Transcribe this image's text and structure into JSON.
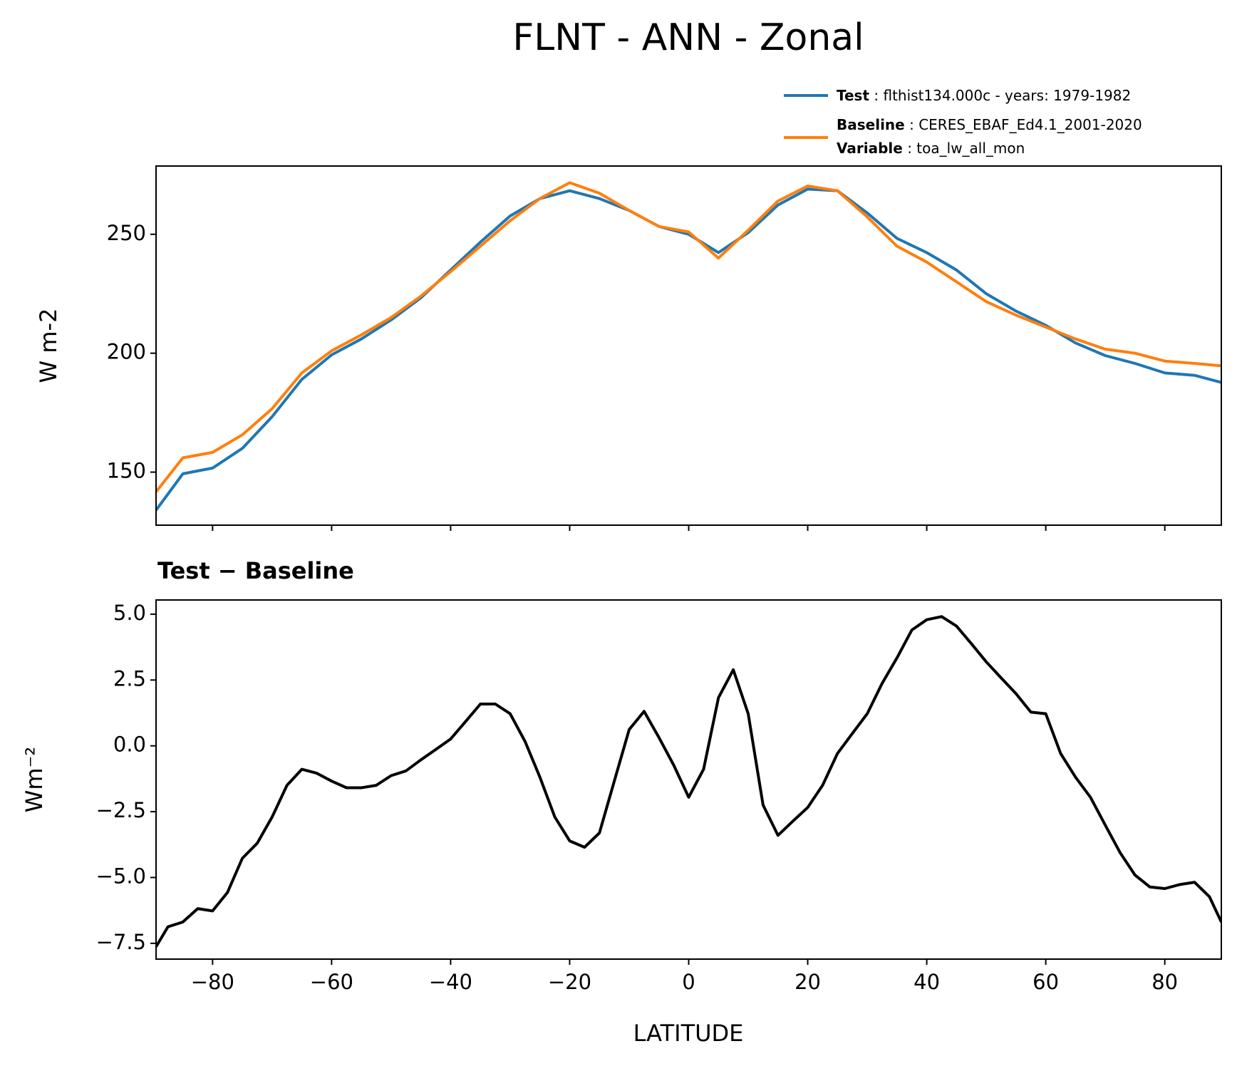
{
  "chart_data": [
    {
      "type": "line",
      "title": "FLNT - ANN - Zonal",
      "ylabel": "W m-2",
      "xlim": [
        -89.5,
        89.5
      ],
      "ylim": [
        127.7,
        278.7
      ],
      "xticks": [
        -80,
        -60,
        -40,
        -20,
        0,
        20,
        40,
        60,
        80
      ],
      "yticks": [
        150,
        200,
        250
      ],
      "x": [
        -89.5,
        -85,
        -80,
        -75,
        -70,
        -65,
        -60,
        -55,
        -50,
        -45,
        -40,
        -35,
        -30,
        -25,
        -20,
        -15,
        -10,
        -5,
        0,
        5,
        10,
        15,
        20,
        25,
        30,
        35,
        40,
        45,
        50,
        55,
        60,
        65,
        70,
        75,
        80,
        85,
        89.5
      ],
      "series": [
        {
          "name": "Test",
          "detail": ": flthist134.000c - years: 1979-1982",
          "color": "#1f77b4",
          "values": [
            134,
            149.3,
            151.7,
            160,
            173.3,
            189,
            199.3,
            206,
            214,
            223.3,
            235,
            246.7,
            257.7,
            265,
            268.3,
            265,
            260,
            253.3,
            250,
            242.3,
            250.7,
            262.3,
            269,
            268.3,
            259,
            248.3,
            242.3,
            235,
            225,
            217.7,
            211.7,
            204.3,
            199,
            195.7,
            191.7,
            190.7,
            187.7
          ]
        },
        {
          "name": "Baseline",
          "detail": ": CERES_EBAF_Ed4.1_2001-2020",
          "color": "#ff7f0e",
          "values": [
            141.7,
            156,
            158.3,
            165.7,
            176.7,
            191.7,
            201,
            207.7,
            215,
            224,
            234.3,
            245,
            255.7,
            265,
            271.7,
            267.3,
            260,
            253.3,
            251,
            240,
            251.7,
            264,
            270.3,
            268.3,
            257.3,
            245,
            238.3,
            230,
            221.7,
            216,
            211,
            206,
            201.7,
            200,
            196.7,
            195.7,
            194.7
          ]
        }
      ],
      "legend_note": {
        "label": "Variable",
        "detail": ": toa_lw_all_mon"
      },
      "legend": "upper right"
    },
    {
      "type": "line",
      "title": "Test − Baseline",
      "xlabel": "LATITUDE",
      "ylabel": "Wm⁻²",
      "xlim": [
        -89.5,
        89.5
      ],
      "ylim": [
        -8.1,
        5.54
      ],
      "xticks": [
        {
          "value": -80,
          "label": "−80"
        },
        {
          "value": -60,
          "label": "−60"
        },
        {
          "value": -40,
          "label": "−40"
        },
        {
          "value": -20,
          "label": "−20"
        },
        0,
        20,
        40,
        60,
        80
      ],
      "yticks": [
        {
          "value": 5,
          "label": "5.0"
        },
        {
          "value": 2.5,
          "label": "2.5"
        },
        {
          "value": 0,
          "label": "0.0"
        },
        {
          "value": -2.5,
          "label": "−2.5"
        },
        {
          "value": -5,
          "label": "−5.0"
        },
        {
          "value": -7.5,
          "label": "−7.5"
        }
      ],
      "x": [
        -89.5,
        -87.5,
        -85,
        -82.5,
        -80,
        -77.5,
        -75,
        -72.5,
        -70,
        -67.5,
        -65,
        -62.5,
        -60,
        -57.5,
        -55,
        -52.5,
        -50,
        -47.5,
        -45,
        -42.5,
        -40,
        -37.5,
        -35,
        -32.5,
        -30,
        -27.5,
        -25,
        -22.5,
        -20,
        -17.5,
        -15,
        -12.5,
        -10,
        -7.5,
        -5,
        -2.5,
        0,
        2.5,
        5,
        7.5,
        10,
        12.5,
        15,
        17.5,
        20,
        22.5,
        25,
        27.5,
        30,
        32.5,
        35,
        37.5,
        40,
        42.5,
        45,
        47.5,
        50,
        52.5,
        55,
        57.5,
        60,
        62.5,
        65,
        67.5,
        70,
        72.5,
        75,
        77.5,
        80,
        82.5,
        85,
        87.5,
        89.5
      ],
      "series": [
        {
          "color": "#000000",
          "values": [
            -7.63,
            -6.87,
            -6.69,
            -6.18,
            -6.27,
            -5.57,
            -4.27,
            -3.7,
            -2.7,
            -1.5,
            -0.89,
            -1.04,
            -1.34,
            -1.59,
            -1.59,
            -1.5,
            -1.13,
            -0.95,
            -0.53,
            -0.14,
            0.26,
            0.92,
            1.59,
            1.59,
            1.22,
            0.17,
            -1.19,
            -2.7,
            -3.61,
            -3.85,
            -3.31,
            -1.34,
            0.62,
            1.31,
            0.32,
            -0.74,
            -1.95,
            -0.89,
            1.83,
            2.89,
            1.22,
            -2.25,
            -3.4,
            -2.86,
            -2.34,
            -1.5,
            -0.29,
            0.47,
            1.22,
            2.37,
            3.34,
            4.4,
            4.79,
            4.91,
            4.55,
            3.88,
            3.19,
            2.58,
            1.98,
            1.28,
            1.22,
            -0.29,
            -1.19,
            -1.95,
            -3.01,
            -4.06,
            -4.91,
            -5.36,
            -5.42,
            -5.27,
            -5.18,
            -5.73,
            -6.69
          ]
        }
      ]
    }
  ]
}
